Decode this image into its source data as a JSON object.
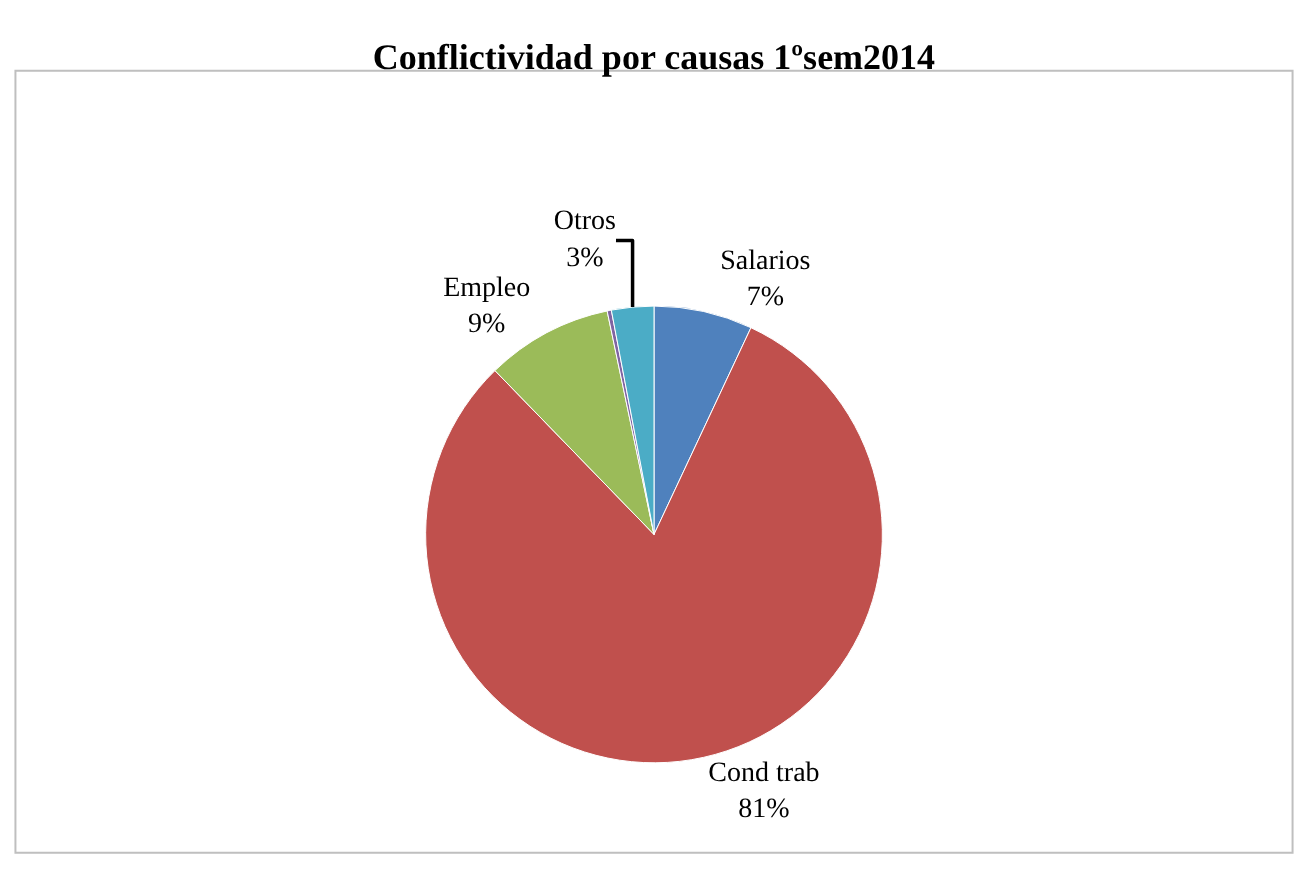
{
  "chart_data": {
    "type": "pie",
    "title": "Conflictividad por causas 1ºsem2014",
    "categories": [
      "Salarios",
      "Cond trab",
      "Empleo",
      null,
      "Otros"
    ],
    "values": [
      7,
      81,
      9,
      0.3,
      3
    ],
    "value_labels": [
      "7%",
      "81%",
      "9%",
      null,
      "3%"
    ],
    "colors": [
      "#4f81bd",
      "#c0504d",
      "#9bbb59",
      "#8064a2",
      "#4bacc6"
    ],
    "legend": false
  }
}
